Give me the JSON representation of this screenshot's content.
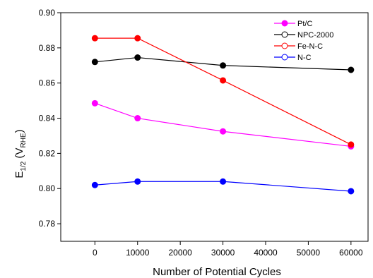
{
  "chart_data": {
    "type": "line",
    "xlabel": "Number of Potential Cycles",
    "ylabel": {
      "main": "E",
      "main_sub": "1/2",
      "open": " (V",
      "unit_sub": "RHE",
      "close": ")"
    },
    "x_ticks": [
      0,
      10000,
      20000,
      30000,
      40000,
      50000,
      60000
    ],
    "y_ticks": [
      0.78,
      0.8,
      0.82,
      0.84,
      0.86,
      0.88,
      0.9
    ],
    "y_tick_labels": [
      "0.78",
      "0.80",
      "0.82",
      "0.84",
      "0.86",
      "0.88",
      "0.90"
    ],
    "xlim": [
      -8000,
      64000
    ],
    "ylim": [
      0.77,
      0.9
    ],
    "grid": false,
    "legend_position": "top-right",
    "series": [
      {
        "name": "Pt/C",
        "color": "#ff00ff",
        "marker_fill": "#ff00ff",
        "x": [
          0,
          10000,
          30000,
          60000
        ],
        "y": [
          0.8485,
          0.84,
          0.8325,
          0.824
        ]
      },
      {
        "name": "NPC-2000",
        "color": "#000000",
        "marker_fill": "#000000",
        "x": [
          0,
          10000,
          30000,
          60000
        ],
        "y": [
          0.872,
          0.8745,
          0.87,
          0.8675
        ]
      },
      {
        "name": "Fe-N-C",
        "color": "#ff0000",
        "marker_fill": "#ff0000",
        "x": [
          0,
          10000,
          30000,
          60000
        ],
        "y": [
          0.8855,
          0.8855,
          0.8615,
          0.825
        ]
      },
      {
        "name": "N-C",
        "color": "#0000ff",
        "marker_fill": "#0000ff",
        "x": [
          0,
          10000,
          30000,
          60000
        ],
        "y": [
          0.802,
          0.804,
          0.804,
          0.7985
        ]
      }
    ]
  }
}
